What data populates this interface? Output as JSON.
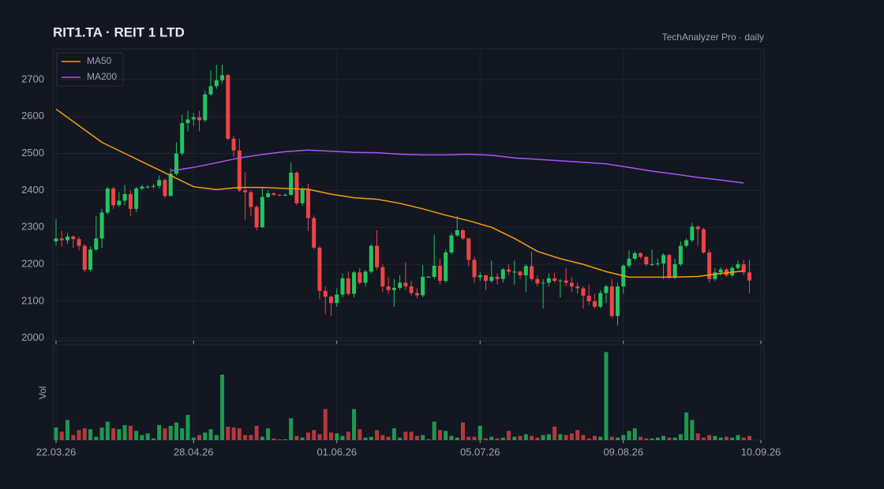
{
  "chart_data": {
    "type": "candlestick",
    "title": "RIT1.TA  ·  REIT 1 LTD",
    "subtitle": "TechAnalyzer Pro · daily",
    "volume_label": "Vol",
    "up_color": "#22c55e",
    "down_color": "#ef4444",
    "ylim": [
      1993,
      2783
    ],
    "yticks": [
      2000,
      2100,
      2200,
      2300,
      2400,
      2500,
      2600,
      2700
    ],
    "xlim": [
      -0.55,
      123.55
    ],
    "xticks": [
      {
        "value": 0,
        "label": "22.03.26"
      },
      {
        "value": 24,
        "label": "28.04.26"
      },
      {
        "value": 49,
        "label": "01.06.26"
      },
      {
        "value": 74,
        "label": "05.07.26"
      },
      {
        "value": 99,
        "label": "09.08.26"
      },
      {
        "value": 123,
        "label": "10.09.26"
      }
    ],
    "vlim": [
      0,
      110
    ],
    "grid": true,
    "legend": "top-left",
    "open": [
      2262,
      2270,
      2265,
      2275,
      2268,
      2250,
      2185,
      2240,
      2270,
      2340,
      2405,
      2360,
      2372,
      2390,
      2350,
      2405,
      2410,
      2410,
      2412,
      2428,
      2385,
      2445,
      2500,
      2582,
      2592,
      2598,
      2590,
      2660,
      2682,
      2698,
      2712,
      2540,
      2508,
      2400,
      2395,
      2355,
      2300,
      2382,
      2392,
      2388,
      2386,
      2388,
      2448,
      2365,
      2402,
      2325,
      2245,
      2128,
      2112,
      2095,
      2118,
      2162,
      2120,
      2178,
      2150,
      2180,
      2250,
      2192,
      2140,
      2130,
      2136,
      2150,
      2140,
      2122,
      2116,
      2166,
      2166,
      2196,
      2155,
      2232,
      2278,
      2292,
      2270,
      2212,
      2165,
      2170,
      2155,
      2166,
      2160,
      2186,
      2180,
      2180,
      2170,
      2195,
      2160,
      2148,
      2150,
      2162,
      2155,
      2156,
      2150,
      2140,
      2135,
      2115,
      2100,
      2085,
      2122,
      2140,
      2060,
      2140,
      2196,
      2215,
      2230,
      2220,
      2200,
      2200,
      2202,
      2225,
      2165,
      2200,
      2250,
      2265,
      2302,
      2295,
      2232,
      2160,
      2178,
      2186,
      2170,
      2190,
      2200,
      2178
    ],
    "high": [
      2322,
      2290,
      2285,
      2278,
      2275,
      2255,
      2248,
      2330,
      2350,
      2410,
      2410,
      2395,
      2415,
      2400,
      2410,
      2415,
      2414,
      2418,
      2440,
      2432,
      2460,
      2530,
      2605,
      2615,
      2610,
      2615,
      2670,
      2725,
      2740,
      2740,
      2715,
      2548,
      2540,
      2450,
      2400,
      2360,
      2410,
      2400,
      2395,
      2390,
      2392,
      2475,
      2452,
      2410,
      2418,
      2332,
      2250,
      2140,
      2115,
      2135,
      2175,
      2180,
      2182,
      2190,
      2185,
      2255,
      2292,
      2200,
      2165,
      2160,
      2170,
      2205,
      2155,
      2135,
      2198,
      2168,
      2280,
      2215,
      2240,
      2285,
      2330,
      2295,
      2272,
      2220,
      2178,
      2172,
      2210,
      2175,
      2190,
      2200,
      2210,
      2182,
      2200,
      2235,
      2170,
      2160,
      2175,
      2178,
      2160,
      2190,
      2165,
      2150,
      2140,
      2145,
      2120,
      2130,
      2145,
      2160,
      2150,
      2200,
      2238,
      2235,
      2232,
      2222,
      2240,
      2215,
      2230,
      2228,
      2215,
      2262,
      2270,
      2312,
      2305,
      2298,
      2240,
      2190,
      2192,
      2190,
      2195,
      2210,
      2212,
      2212
    ],
    "low": [
      2250,
      2248,
      2255,
      2245,
      2238,
      2178,
      2180,
      2235,
      2245,
      2335,
      2350,
      2355,
      2360,
      2330,
      2340,
      2400,
      2405,
      2405,
      2405,
      2380,
      2383,
      2440,
      2495,
      2560,
      2575,
      2560,
      2585,
      2655,
      2675,
      2690,
      2535,
      2490,
      2395,
      2320,
      2330,
      2292,
      2298,
      2380,
      2385,
      2384,
      2384,
      2385,
      2360,
      2358,
      2290,
      2240,
      2105,
      2065,
      2060,
      2085,
      2110,
      2115,
      2110,
      2145,
      2140,
      2175,
      2185,
      2125,
      2120,
      2085,
      2130,
      2130,
      2115,
      2108,
      2110,
      2164,
      2160,
      2145,
      2150,
      2228,
      2275,
      2265,
      2195,
      2150,
      2155,
      2130,
      2150,
      2145,
      2150,
      2170,
      2145,
      2160,
      2125,
      2155,
      2140,
      2080,
      2140,
      2150,
      2110,
      2140,
      2125,
      2120,
      2080,
      2090,
      2080,
      2080,
      2095,
      2055,
      2035,
      2120,
      2190,
      2210,
      2215,
      2195,
      2195,
      2195,
      2160,
      2160,
      2160,
      2195,
      2245,
      2260,
      2250,
      2228,
      2150,
      2155,
      2170,
      2165,
      2165,
      2185,
      2170,
      2122
    ],
    "close": [
      2270,
      2265,
      2275,
      2268,
      2250,
      2185,
      2240,
      2270,
      2340,
      2405,
      2360,
      2372,
      2390,
      2350,
      2405,
      2410,
      2410,
      2412,
      2428,
      2385,
      2445,
      2500,
      2582,
      2592,
      2598,
      2590,
      2660,
      2682,
      2698,
      2712,
      2540,
      2508,
      2400,
      2395,
      2355,
      2300,
      2382,
      2392,
      2388,
      2386,
      2388,
      2448,
      2365,
      2402,
      2325,
      2245,
      2128,
      2112,
      2095,
      2118,
      2162,
      2120,
      2178,
      2150,
      2180,
      2250,
      2192,
      2140,
      2130,
      2136,
      2150,
      2140,
      2122,
      2116,
      2166,
      2166,
      2196,
      2155,
      2232,
      2278,
      2292,
      2270,
      2212,
      2165,
      2170,
      2155,
      2166,
      2160,
      2186,
      2180,
      2180,
      2170,
      2195,
      2160,
      2148,
      2150,
      2162,
      2155,
      2156,
      2150,
      2140,
      2135,
      2115,
      2100,
      2085,
      2122,
      2140,
      2060,
      2140,
      2196,
      2215,
      2230,
      2220,
      2200,
      2200,
      2202,
      2225,
      2165,
      2200,
      2250,
      2265,
      2302,
      2295,
      2232,
      2160,
      2178,
      2186,
      2170,
      2190,
      2200,
      2178,
      2156
    ],
    "volume": [
      15,
      10,
      24,
      6,
      12,
      14,
      13,
      4,
      15,
      22,
      14,
      13,
      18,
      17,
      11,
      6,
      8,
      2,
      18,
      14,
      17,
      21,
      14,
      30,
      3,
      6,
      9,
      13,
      6,
      78,
      16,
      15,
      14,
      6,
      6,
      17,
      4,
      14,
      2,
      1,
      1,
      26,
      5,
      3,
      9,
      12,
      7,
      37,
      9,
      8,
      5,
      10,
      37,
      13,
      3,
      4,
      12,
      6,
      4,
      14,
      3,
      10,
      10,
      5,
      6,
      1,
      22,
      12,
      11,
      5,
      3,
      21,
      4,
      4,
      17,
      2,
      4,
      2,
      3,
      11,
      4,
      5,
      7,
      5,
      3,
      6,
      7,
      16,
      7,
      6,
      8,
      12,
      6,
      2,
      5,
      4,
      105,
      4,
      3,
      6,
      11,
      14,
      4,
      2,
      2,
      3,
      5,
      3,
      3,
      7,
      33,
      24,
      8,
      3,
      6,
      5,
      3,
      4,
      3,
      6,
      3,
      5
    ],
    "overlays": [
      {
        "name": "MA50",
        "color": "#f59e0b",
        "x": [
          0,
          4,
          8,
          12,
          16,
          20,
          24,
          28,
          32,
          36,
          40,
          44,
          48,
          52,
          56,
          60,
          64,
          68,
          72,
          76,
          80,
          84,
          88,
          92,
          96,
          100,
          104,
          108,
          112,
          116,
          120
        ],
        "values": [
          2620,
          2575,
          2530,
          2500,
          2470,
          2440,
          2410,
          2402,
          2408,
          2408,
          2405,
          2403,
          2390,
          2380,
          2376,
          2365,
          2350,
          2333,
          2318,
          2300,
          2270,
          2235,
          2215,
          2200,
          2180,
          2165,
          2165,
          2165,
          2167,
          2175,
          2182
        ]
      },
      {
        "name": "MA200",
        "color": "#a855f7",
        "x": [
          20,
          24,
          28,
          32,
          36,
          40,
          44,
          48,
          52,
          56,
          60,
          64,
          68,
          72,
          76,
          80,
          84,
          88,
          92,
          96,
          100,
          104,
          108,
          112,
          116,
          120
        ],
        "values": [
          2453,
          2462,
          2475,
          2488,
          2497,
          2505,
          2509,
          2506,
          2503,
          2502,
          2498,
          2496,
          2496,
          2498,
          2495,
          2488,
          2484,
          2480,
          2476,
          2472,
          2462,
          2452,
          2444,
          2435,
          2428,
          2420
        ]
      }
    ]
  }
}
